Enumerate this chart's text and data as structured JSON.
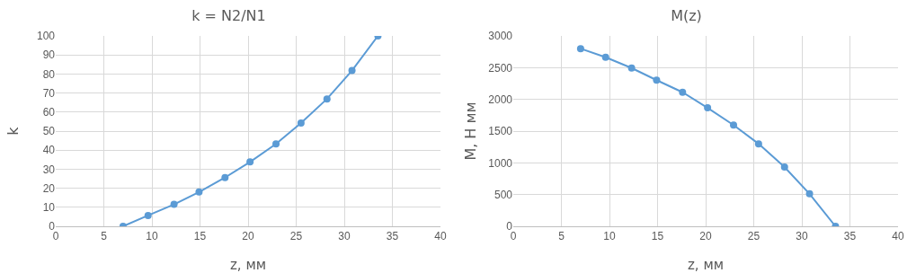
{
  "chart_data": [
    {
      "type": "line",
      "title": "k = N2/N1",
      "xlabel": "z, мм",
      "ylabel": "k",
      "x": [
        7,
        9.6,
        12.3,
        14.9,
        17.6,
        20.2,
        22.9,
        25.5,
        28.2,
        30.8,
        33.5
      ],
      "series": [
        {
          "color": "#5b9bd5",
          "values": [
            0,
            5.7,
            11.5,
            18,
            25.6,
            33.8,
            43.3,
            54.2,
            66.9,
            81.8,
            100
          ]
        }
      ],
      "xlim": [
        0,
        40
      ],
      "xticks": [
        0,
        5,
        10,
        15,
        20,
        25,
        30,
        35,
        40
      ],
      "ylim": [
        0,
        100
      ],
      "yticks": [
        0,
        10,
        20,
        30,
        40,
        50,
        60,
        70,
        80,
        90,
        100
      ],
      "grid": true,
      "marker": "circle",
      "line_style": "solid",
      "legend": false
    },
    {
      "type": "line",
      "title": "M(z)",
      "xlabel": "z, мм",
      "ylabel": "M, Н мм",
      "x": [
        7,
        9.6,
        12.3,
        14.9,
        17.6,
        20.2,
        22.9,
        25.5,
        28.2,
        30.8,
        33.5
      ],
      "series": [
        {
          "color": "#5b9bd5",
          "values": [
            2800,
            2664,
            2494,
            2303,
            2112,
            1867,
            1596,
            1300,
            933,
            512,
            0
          ]
        }
      ],
      "xlim": [
        0,
        40
      ],
      "xticks": [
        0,
        5,
        10,
        15,
        20,
        25,
        30,
        35,
        40
      ],
      "ylim": [
        0,
        3000
      ],
      "yticks": [
        0,
        500,
        1000,
        1500,
        2000,
        2500,
        3000
      ],
      "grid": true,
      "marker": "circle",
      "line_style": "solid",
      "legend": false
    }
  ]
}
